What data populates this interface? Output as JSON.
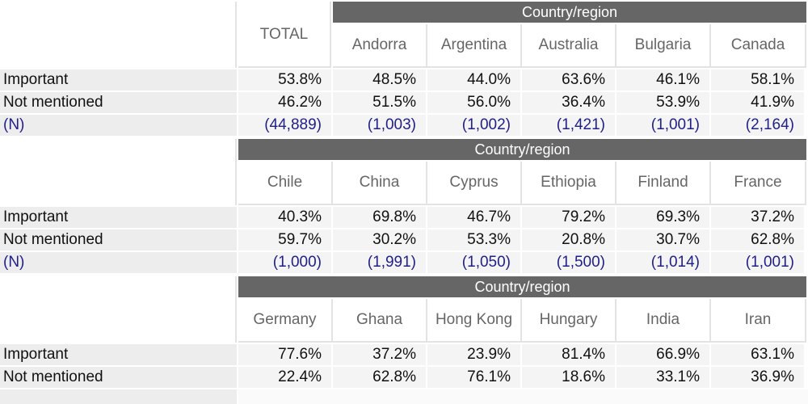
{
  "colors": {
    "group_header_bg": "#666666",
    "group_header_text": "#ffffff",
    "column_header_text": "#666666",
    "n_row_text": "#1f1f8a",
    "row_label_bg": "#ededed",
    "cell_bg": "#f4f4f4"
  },
  "blocks": [
    {
      "total_label": "TOTAL",
      "group_label": "Country/region",
      "columns": [
        "Andorra",
        "Argentina",
        "Australia",
        "Bulgaria",
        "Canada"
      ],
      "rows": [
        {
          "label": "Important",
          "values": [
            "53.8%",
            "48.5%",
            "44.0%",
            "63.6%",
            "46.1%",
            "58.1%"
          ]
        },
        {
          "label": "Not mentioned",
          "values": [
            "46.2%",
            "51.5%",
            "56.0%",
            "36.4%",
            "53.9%",
            "41.9%"
          ]
        },
        {
          "label": "(N)",
          "values": [
            "(44,889)",
            "(1,003)",
            "(1,002)",
            "(1,421)",
            "(1,001)",
            "(2,164)"
          ]
        }
      ]
    },
    {
      "group_label": "Country/region",
      "columns": [
        "Chile",
        "China",
        "Cyprus",
        "Ethiopia",
        "Finland",
        "France"
      ],
      "rows": [
        {
          "label": "Important",
          "values": [
            "40.3%",
            "69.8%",
            "46.7%",
            "79.2%",
            "69.3%",
            "37.2%"
          ]
        },
        {
          "label": "Not mentioned",
          "values": [
            "59.7%",
            "30.2%",
            "53.3%",
            "20.8%",
            "30.7%",
            "62.8%"
          ]
        },
        {
          "label": "(N)",
          "values": [
            "(1,000)",
            "(1,991)",
            "(1,050)",
            "(1,500)",
            "(1,014)",
            "(1,001)"
          ]
        }
      ]
    },
    {
      "group_label": "Country/region",
      "columns": [
        "Germany",
        "Ghana",
        "Hong Kong",
        "Hungary",
        "India",
        "Iran"
      ],
      "rows": [
        {
          "label": "Important",
          "values": [
            "77.6%",
            "37.2%",
            "23.9%",
            "81.4%",
            "66.9%",
            "63.1%"
          ]
        },
        {
          "label": "Not mentioned",
          "values": [
            "22.4%",
            "62.8%",
            "76.1%",
            "18.6%",
            "33.1%",
            "36.9%"
          ]
        }
      ]
    }
  ]
}
